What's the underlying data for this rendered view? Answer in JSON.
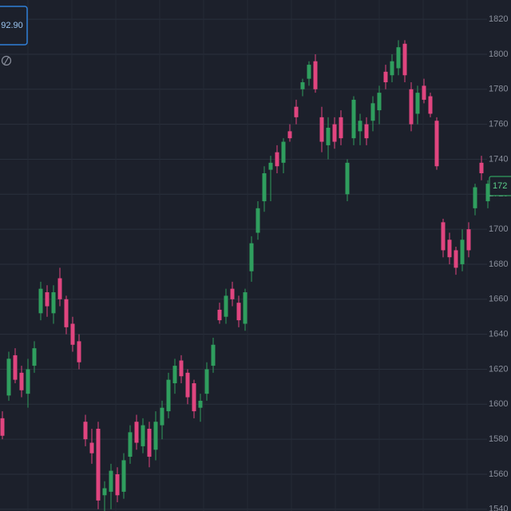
{
  "chart_data": {
    "type": "candlestick",
    "header_value": "92.90",
    "price_label": "172",
    "up_color": "#2f9e5e",
    "down_color": "#e0457f",
    "grid": true,
    "ylim": [
      1539,
      1831
    ],
    "yticks": [
      1540,
      1560,
      1580,
      1600,
      1620,
      1640,
      1660,
      1680,
      1700,
      1720,
      1740,
      1760,
      1780,
      1800,
      1820
    ],
    "open": [
      1592,
      1605,
      1628,
      1618,
      1606,
      1622,
      1652,
      1664,
      1652,
      1672,
      1660,
      1646,
      1636,
      1590,
      1578,
      1586,
      1548,
      1550,
      1560,
      1550,
      1570,
      1590,
      1576,
      1586,
      1574,
      1588,
      1596,
      1612,
      1625,
      1618,
      1612,
      1598,
      1606,
      1622,
      1654,
      1650,
      1666,
      1658,
      1646,
      1676,
      1698,
      1716,
      1734,
      1744,
      1738,
      1756,
      1770,
      1780,
      1786,
      1796,
      1764,
      1748,
      1760,
      1764,
      1720,
      1752,
      1756,
      1760,
      1762,
      1768,
      1790,
      1788,
      1792,
      1806,
      1780,
      1766,
      1782,
      1776,
      1762,
      1704,
      1694,
      1688,
      1680,
      1700,
      1712,
      1738,
      1716
    ],
    "high": [
      1596,
      1630,
      1632,
      1622,
      1626,
      1636,
      1670,
      1668,
      1668,
      1678,
      1662,
      1650,
      1640,
      1594,
      1586,
      1590,
      1556,
      1566,
      1564,
      1572,
      1588,
      1594,
      1592,
      1590,
      1596,
      1602,
      1618,
      1626,
      1628,
      1620,
      1614,
      1606,
      1624,
      1638,
      1658,
      1666,
      1670,
      1662,
      1666,
      1696,
      1716,
      1736,
      1742,
      1748,
      1752,
      1760,
      1774,
      1786,
      1796,
      1800,
      1770,
      1764,
      1764,
      1768,
      1740,
      1776,
      1766,
      1764,
      1776,
      1782,
      1794,
      1800,
      1808,
      1808,
      1784,
      1782,
      1786,
      1778,
      1764,
      1706,
      1698,
      1690,
      1700,
      1704,
      1726,
      1742,
      1728
    ],
    "low": [
      1580,
      1602,
      1612,
      1604,
      1598,
      1618,
      1648,
      1650,
      1646,
      1656,
      1640,
      1630,
      1620,
      1576,
      1566,
      1540,
      1536,
      1540,
      1544,
      1546,
      1566,
      1574,
      1572,
      1564,
      1568,
      1580,
      1592,
      1606,
      1612,
      1600,
      1592,
      1590,
      1602,
      1618,
      1646,
      1646,
      1656,
      1644,
      1642,
      1670,
      1694,
      1710,
      1716,
      1732,
      1732,
      1750,
      1760,
      1776,
      1782,
      1778,
      1744,
      1740,
      1746,
      1748,
      1716,
      1748,
      1748,
      1748,
      1756,
      1760,
      1780,
      1784,
      1788,
      1784,
      1756,
      1760,
      1772,
      1764,
      1734,
      1684,
      1680,
      1674,
      1676,
      1684,
      1708,
      1728,
      1712
    ],
    "close": [
      1582,
      1626,
      1614,
      1608,
      1620,
      1632,
      1666,
      1656,
      1664,
      1660,
      1644,
      1634,
      1624,
      1580,
      1572,
      1545,
      1552,
      1562,
      1548,
      1568,
      1584,
      1578,
      1588,
      1570,
      1590,
      1598,
      1614,
      1622,
      1616,
      1604,
      1596,
      1602,
      1620,
      1634,
      1648,
      1662,
      1660,
      1648,
      1664,
      1692,
      1712,
      1732,
      1738,
      1736,
      1750,
      1752,
      1764,
      1784,
      1794,
      1780,
      1750,
      1758,
      1750,
      1752,
      1738,
      1774,
      1762,
      1752,
      1772,
      1778,
      1784,
      1796,
      1804,
      1788,
      1760,
      1778,
      1774,
      1766,
      1736,
      1688,
      1684,
      1678,
      1694,
      1688,
      1724,
      1732,
      1726
    ]
  }
}
